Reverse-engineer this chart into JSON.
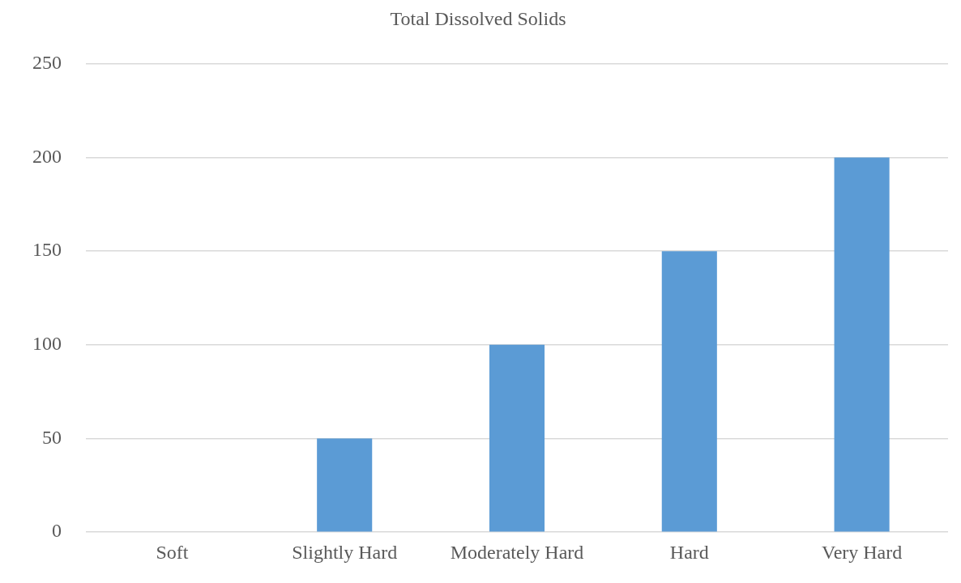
{
  "chart_data": {
    "type": "bar",
    "title": "Total Dissolved Solids",
    "categories": [
      "Soft",
      "Slightly Hard",
      "Moderately Hard",
      "Hard",
      "Very Hard"
    ],
    "values": [
      0,
      50,
      100,
      150,
      200
    ],
    "color": "#5b9bd5",
    "ylim": [
      0,
      250
    ],
    "yticks": [
      0,
      50,
      100,
      150,
      200,
      250
    ],
    "grid": "y"
  }
}
